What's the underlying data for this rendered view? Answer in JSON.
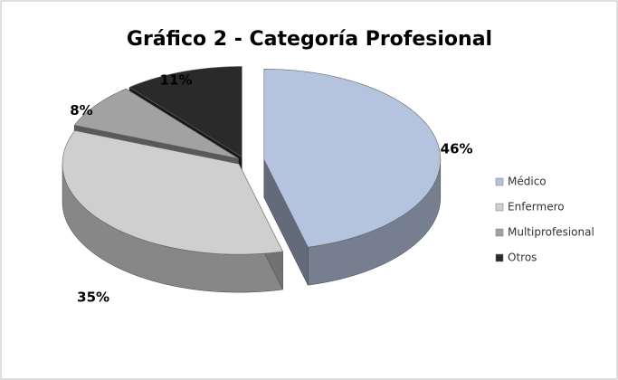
{
  "chart_data": {
    "type": "pie3d",
    "title": "Gráfico 2 - Categoría Profesional",
    "categories": [
      "Médico",
      "Enfermero",
      "Multiprofesional",
      "Otros"
    ],
    "values": [
      46,
      35,
      8,
      11
    ],
    "value_labels": [
      "46%",
      "35%",
      "8%",
      "11%"
    ],
    "colors": [
      "#b4c3de",
      "#cfcfcf",
      "#a2a2a2",
      "#2a2a2a"
    ],
    "legend": "right"
  }
}
